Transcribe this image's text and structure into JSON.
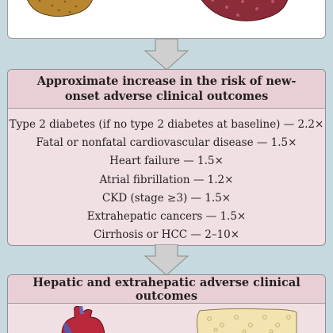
{
  "colors": {
    "background": "#c5d9df",
    "panel": "#f0dfe3",
    "panel_header": "#e8cfd5",
    "arrow": "#cfcfcf"
  },
  "risk_panel": {
    "title": "Approximate increase in the risk of new-onset adverse clinical outcomes",
    "items": [
      "Type 2 diabetes (if no type 2 diabetes at baseline) — 2.2×",
      "Fatal or nonfatal cardiovascular disease — 1.5×",
      "Heart failure — 1.5×",
      "Atrial fibrillation — 1.2×",
      "CKD (stage ≥3) — 1.5×",
      "Extrahepatic cancers — 1.5×",
      "Cirrhosis or HCC — 2–10×"
    ]
  },
  "outcomes_panel": {
    "title": "Hepatic and extrahepatic adverse clinical outcomes"
  },
  "illustrations": {
    "top_left": "healthy-liver",
    "top_right": "diseased-liver",
    "bottom_left": "heart",
    "bottom_right": "cirrhotic-liver"
  }
}
